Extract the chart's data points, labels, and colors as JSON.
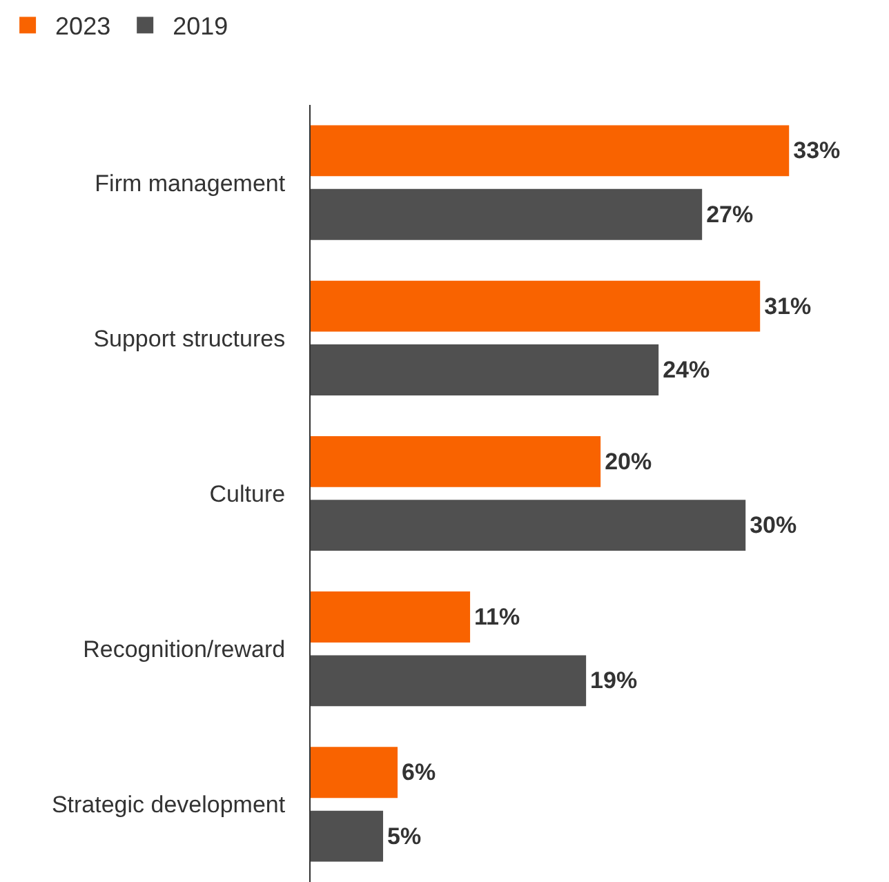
{
  "chart_data": {
    "type": "bar",
    "orientation": "horizontal",
    "categories": [
      "Firm management",
      "Support structures",
      "Culture",
      "Recognition/reward",
      "Strategic development"
    ],
    "series": [
      {
        "name": "2023",
        "color": "#f96300",
        "values": [
          33,
          31,
          20,
          11,
          6
        ],
        "value_labels": [
          "33%",
          "31%",
          "20%",
          "11%",
          "6%"
        ]
      },
      {
        "name": "2019",
        "color": "#505050",
        "values": [
          27,
          24,
          30,
          19,
          5
        ],
        "value_labels": [
          "27%",
          "24%",
          "30%",
          "19%",
          "5%"
        ]
      }
    ],
    "legend": "top left"
  }
}
